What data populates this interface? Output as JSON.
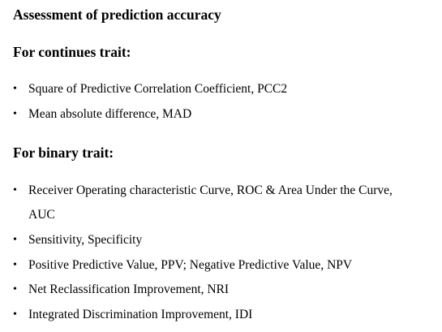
{
  "title": "Assessment of prediction accuracy",
  "continuous": {
    "heading": "For continues trait:",
    "items": [
      "Square of Predictive Correlation Coefficient, PCC2",
      "Mean absolute difference, MAD"
    ]
  },
  "binary": {
    "heading": "For binary trait:",
    "items": [
      {
        "line1": "Receiver Operating characteristic Curve, ROC & Area Under the Curve,",
        "line2": "AUC"
      },
      "Sensitivity, Specificity",
      "Positive Predictive Value, PPV; Negative Predictive Value, NPV",
      "Net Reclassification Improvement, NRI",
      "Integrated Discrimination Improvement, IDI"
    ]
  },
  "bullet_glyph": "•"
}
